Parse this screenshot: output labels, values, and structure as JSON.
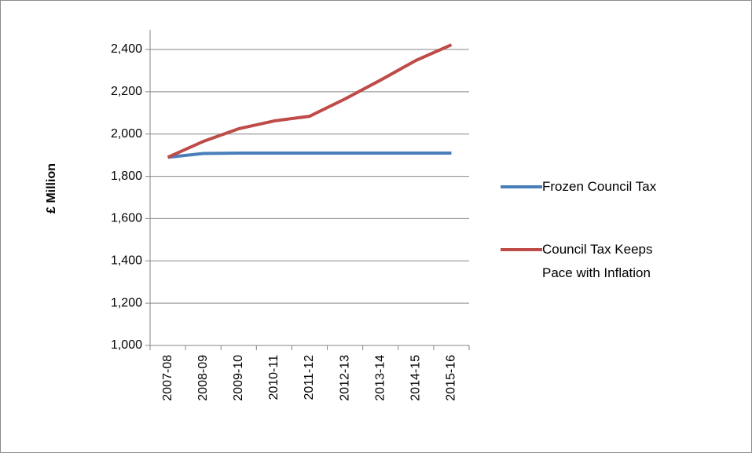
{
  "chart_data": {
    "type": "line",
    "y_label": "£ Million",
    "categories": [
      "2007-08",
      "2008-09",
      "2009-10",
      "2010-11",
      "2011-12",
      "2012-13",
      "2013-14",
      "2014-15",
      "2015-16"
    ],
    "series": [
      {
        "name": "Frozen Council Tax",
        "color": "#4a7ebb",
        "values": [
          1890,
          1908,
          1910,
          1910,
          1910,
          1910,
          1910,
          1910,
          1910
        ]
      },
      {
        "name": "Council Tax Keeps Pace with Inflation",
        "color": "#be4b48",
        "values": [
          1890,
          1965,
          2025,
          2062,
          2084,
          2166,
          2255,
          2348,
          2422
        ]
      }
    ],
    "ylim": [
      1000,
      2400
    ],
    "yticks": [
      {
        "value": 1000,
        "label": "1,000"
      },
      {
        "value": 1200,
        "label": "1,200"
      },
      {
        "value": 1400,
        "label": "1,400"
      },
      {
        "value": 1600,
        "label": "1,600"
      },
      {
        "value": 1800,
        "label": "1,800"
      },
      {
        "value": 2000,
        "label": "2,000"
      },
      {
        "value": 2200,
        "label": "2,200"
      },
      {
        "value": 2400,
        "label": "2,400"
      }
    ],
    "grid": true
  }
}
